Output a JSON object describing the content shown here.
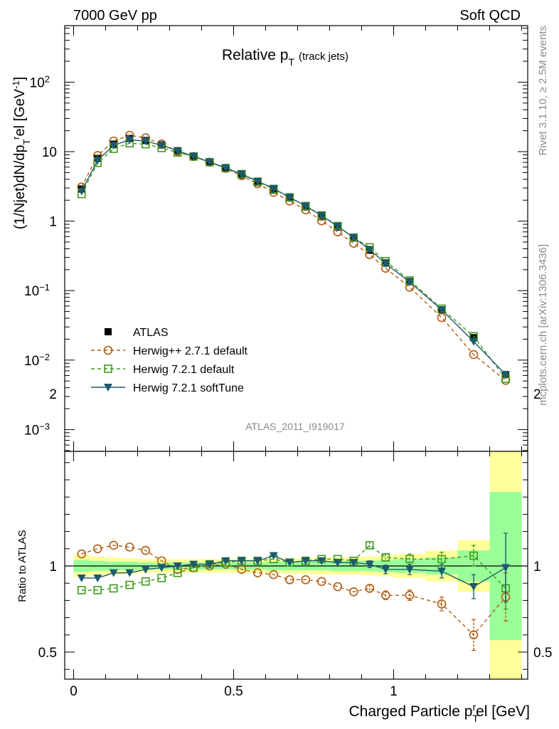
{
  "header": {
    "left": "7000 GeV pp",
    "right": "Soft QCD"
  },
  "side": {
    "rivet": "Rivet 3.1.10, ≥ 2.5M events",
    "mcplots": "mcplots.cern.ch [arXiv:1306.3436]"
  },
  "colors": {
    "data": "#000000",
    "herwigpp": "#b25b10",
    "herwig_default": "#3c9b1a",
    "herwig_soft": "#1e5a6e",
    "band_yellow": "#ffff99",
    "band_green": "#99ff99"
  },
  "chart_data": [
    {
      "type": "scatter",
      "title": "Relative p_T (track jets)",
      "ylabel": "(1/Njet)dN/dp_T^rel [GeV^-1]",
      "analysis_id": "ATLAS_2011_I919017",
      "yscale": "log",
      "ylim": [
        0.0004,
        800
      ],
      "xlim": [
        -0.05,
        1.4
      ],
      "x": [
        0.025,
        0.075,
        0.125,
        0.175,
        0.225,
        0.275,
        0.325,
        0.375,
        0.425,
        0.475,
        0.525,
        0.575,
        0.625,
        0.675,
        0.725,
        0.775,
        0.825,
        0.875,
        0.925,
        0.975,
        1.05,
        1.15,
        1.25,
        1.35
      ],
      "series": [
        {
          "name": "ATLAS",
          "marker": "filled-square",
          "values": [
            2.9,
            8.0,
            12.8,
            15.5,
            14.5,
            12.5,
            10.3,
            8.6,
            7.0,
            5.7,
            4.6,
            3.6,
            2.8,
            2.15,
            1.6,
            1.16,
            0.82,
            0.57,
            0.38,
            0.25,
            0.135,
            0.053,
            0.021,
            0.0062
          ]
        },
        {
          "name": "Herwig++ 2.7.1 default",
          "marker": "open-circle",
          "values": [
            3.1,
            8.8,
            14.2,
            17.2,
            15.8,
            12.9,
            10.1,
            8.5,
            7.05,
            5.75,
            4.5,
            3.45,
            2.6,
            1.95,
            1.45,
            1.01,
            0.7,
            0.48,
            0.33,
            0.21,
            0.112,
            0.041,
            0.012,
            0.0051
          ]
        },
        {
          "name": "Herwig 7.2.1 default",
          "marker": "open-square",
          "values": [
            2.45,
            6.9,
            11.0,
            13.2,
            12.8,
            11.3,
            9.7,
            8.5,
            7.05,
            5.8,
            4.75,
            3.7,
            2.9,
            2.2,
            1.65,
            1.21,
            0.85,
            0.58,
            0.42,
            0.265,
            0.14,
            0.055,
            0.022,
            0.0054
          ]
        },
        {
          "name": "Herwig 7.2.1 softTune",
          "marker": "filled-triangle-down",
          "values": [
            2.7,
            7.5,
            12.3,
            14.8,
            14.2,
            12.3,
            10.3,
            8.6,
            7.1,
            5.85,
            4.75,
            3.75,
            2.95,
            2.2,
            1.65,
            1.2,
            0.84,
            0.58,
            0.39,
            0.245,
            0.133,
            0.053,
            0.0185,
            0.0062
          ]
        }
      ]
    },
    {
      "type": "scatter",
      "xlabel": "Charged Particle p_T^rel [GeV]",
      "ylabel": "Ratio to ATLAS",
      "ylim": [
        0.35,
        2.35
      ],
      "xlim": [
        -0.05,
        1.4
      ],
      "x_ticks": [
        "0",
        "0.5",
        "1"
      ],
      "y_ticks": [
        "0.5",
        "1",
        "2"
      ],
      "bands": {
        "edges": [
          0.0,
          0.05,
          0.1,
          0.15,
          0.2,
          0.25,
          0.3,
          0.35,
          0.4,
          0.45,
          0.5,
          0.55,
          0.6,
          0.65,
          0.7,
          0.75,
          0.8,
          0.85,
          0.9,
          0.95,
          1.0,
          1.1,
          1.2,
          1.3,
          1.4
        ],
        "yellow_half_width": [
          0.065,
          0.055,
          0.05,
          0.045,
          0.04,
          0.04,
          0.04,
          0.04,
          0.04,
          0.04,
          0.04,
          0.04,
          0.04,
          0.045,
          0.045,
          0.05,
          0.05,
          0.05,
          0.055,
          0.06,
          0.07,
          0.09,
          0.15,
          0.78
        ],
        "green_half_width": [
          0.035,
          0.03,
          0.025,
          0.025,
          0.02,
          0.02,
          0.02,
          0.02,
          0.02,
          0.02,
          0.02,
          0.02,
          0.025,
          0.025,
          0.025,
          0.025,
          0.03,
          0.03,
          0.03,
          0.035,
          0.04,
          0.05,
          0.09,
          0.43
        ]
      },
      "series": [
        {
          "name": "Herwig++ 2.7.1 default",
          "values": [
            1.07,
            1.1,
            1.12,
            1.11,
            1.09,
            1.03,
            0.98,
            0.99,
            1.0,
            1.01,
            0.98,
            0.96,
            0.95,
            0.92,
            0.92,
            0.91,
            0.88,
            0.85,
            0.87,
            0.83,
            0.83,
            0.78,
            0.6,
            0.82
          ],
          "errors": [
            0.01,
            0.01,
            0.01,
            0.01,
            0.01,
            0.01,
            0.01,
            0.01,
            0.01,
            0.01,
            0.01,
            0.01,
            0.01,
            0.01,
            0.01,
            0.01,
            0.015,
            0.015,
            0.02,
            0.025,
            0.03,
            0.04,
            0.09,
            0.14
          ]
        },
        {
          "name": "Herwig 7.2.1 default",
          "values": [
            0.86,
            0.86,
            0.87,
            0.89,
            0.91,
            0.93,
            0.96,
            0.99,
            1.01,
            1.02,
            1.03,
            1.03,
            1.04,
            1.02,
            1.03,
            1.04,
            1.04,
            1.03,
            1.12,
            1.05,
            1.04,
            1.04,
            1.06,
            0.87
          ],
          "errors": [
            0.01,
            0.01,
            0.01,
            0.01,
            0.01,
            0.01,
            0.01,
            0.01,
            0.01,
            0.01,
            0.01,
            0.01,
            0.01,
            0.01,
            0.01,
            0.01,
            0.015,
            0.015,
            0.02,
            0.02,
            0.03,
            0.04,
            0.06,
            0.12
          ]
        },
        {
          "name": "Herwig 7.2.1 softTune",
          "values": [
            0.93,
            0.93,
            0.96,
            0.96,
            0.98,
            0.99,
            1.0,
            1.01,
            1.01,
            1.03,
            1.03,
            1.03,
            1.06,
            1.02,
            1.03,
            1.03,
            1.02,
            1.02,
            1.01,
            0.98,
            0.98,
            0.97,
            0.88,
            0.99
          ],
          "errors": [
            0.01,
            0.01,
            0.01,
            0.01,
            0.01,
            0.01,
            0.01,
            0.01,
            0.01,
            0.01,
            0.01,
            0.01,
            0.01,
            0.01,
            0.01,
            0.01,
            0.015,
            0.015,
            0.02,
            0.025,
            0.03,
            0.04,
            0.07,
            0.2
          ]
        }
      ]
    }
  ]
}
